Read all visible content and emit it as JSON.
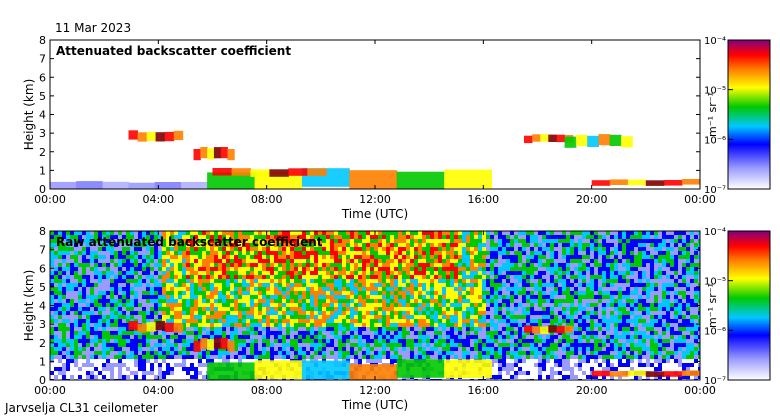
{
  "header": {
    "date": "11 Mar 2023"
  },
  "footer": {
    "instrument": "Jarvselja CL31 ceilometer"
  },
  "chart_data": [
    {
      "type": "heatmap",
      "title": "Attenuated backscatter coefficient",
      "xlabel": "Time (UTC)",
      "ylabel": "Height (km)",
      "xlim": [
        0,
        24
      ],
      "ylim": [
        0,
        8
      ],
      "x_ticks": [
        "00:00",
        "04:00",
        "08:00",
        "12:00",
        "16:00",
        "20:00",
        "00:00"
      ],
      "y_ticks": [
        "0",
        "1",
        "2",
        "3",
        "4",
        "5",
        "6",
        "7",
        "8"
      ],
      "colorbar": {
        "label": "m⁻¹ sr⁻¹",
        "scale": "log",
        "range": [
          1e-07,
          0.0001
        ],
        "ticks": [
          "10⁻⁷",
          "10⁻⁶",
          "10⁻⁵",
          "10⁻⁴"
        ]
      },
      "layers": [
        {
          "name": "surface aerosol layer",
          "time_range_h": [
            0,
            5.8
          ],
          "height_km": [
            0,
            0.4
          ],
          "level": "low"
        },
        {
          "name": "cloud",
          "time_range_h": [
            2.9,
            4.9
          ],
          "height_km": [
            2.6,
            3.1
          ],
          "level": "high"
        },
        {
          "name": "cloud",
          "time_range_h": [
            5.3,
            6.8
          ],
          "height_km": [
            1.6,
            2.2
          ],
          "level": "high"
        },
        {
          "name": "boundary layer aerosol",
          "time_range_h": [
            5.8,
            16.3
          ],
          "height_km": [
            0,
            1.0
          ],
          "level": "medium"
        },
        {
          "name": "low cloud",
          "time_range_h": [
            6.0,
            10.2
          ],
          "height_km": [
            0.7,
            1.1
          ],
          "level": "high"
        },
        {
          "name": "cloud",
          "time_range_h": [
            17.5,
            19.3
          ],
          "height_km": [
            2.5,
            2.9
          ],
          "level": "high"
        },
        {
          "name": "cloud",
          "time_range_h": [
            19.0,
            21.5
          ],
          "height_km": [
            2.3,
            2.9
          ],
          "level": "medium"
        },
        {
          "name": "low cloud",
          "time_range_h": [
            20.0,
            24.0
          ],
          "height_km": [
            0.2,
            0.5
          ],
          "level": "high"
        }
      ]
    },
    {
      "type": "heatmap",
      "title": "Raw attenuated backscatter coefficient",
      "xlabel": "Time (UTC)",
      "ylabel": "Height (km)",
      "xlim": [
        0,
        24
      ],
      "ylim": [
        0,
        8
      ],
      "x_ticks": [
        "00:00",
        "04:00",
        "08:00",
        "12:00",
        "16:00",
        "20:00",
        "00:00"
      ],
      "y_ticks": [
        "0",
        "1",
        "2",
        "3",
        "4",
        "5",
        "6",
        "7",
        "8"
      ],
      "colorbar": {
        "label": "m⁻¹ sr⁻¹",
        "scale": "log",
        "range": [
          1e-07,
          0.0001
        ],
        "ticks": [
          "10⁻⁷",
          "10⁻⁶",
          "10⁻⁵",
          "10⁻⁴"
        ]
      },
      "layers": [
        {
          "name": "noise background",
          "time_range_h": [
            0,
            24
          ],
          "height_km": [
            0,
            8
          ],
          "level": "noise"
        },
        {
          "name": "cloud",
          "time_range_h": [
            2.9,
            4.9
          ],
          "height_km": [
            2.6,
            3.1
          ],
          "level": "high"
        },
        {
          "name": "cloud",
          "time_range_h": [
            5.3,
            6.8
          ],
          "height_km": [
            1.6,
            2.2
          ],
          "level": "high"
        },
        {
          "name": "boundary layer aerosol",
          "time_range_h": [
            5.8,
            16.3
          ],
          "height_km": [
            0,
            1.0
          ],
          "level": "medium"
        },
        {
          "name": "cloud",
          "time_range_h": [
            17.5,
            19.3
          ],
          "height_km": [
            2.5,
            2.9
          ],
          "level": "high"
        },
        {
          "name": "low cloud",
          "time_range_h": [
            20.0,
            24.0
          ],
          "height_km": [
            0.2,
            0.5
          ],
          "level": "high"
        }
      ]
    }
  ]
}
